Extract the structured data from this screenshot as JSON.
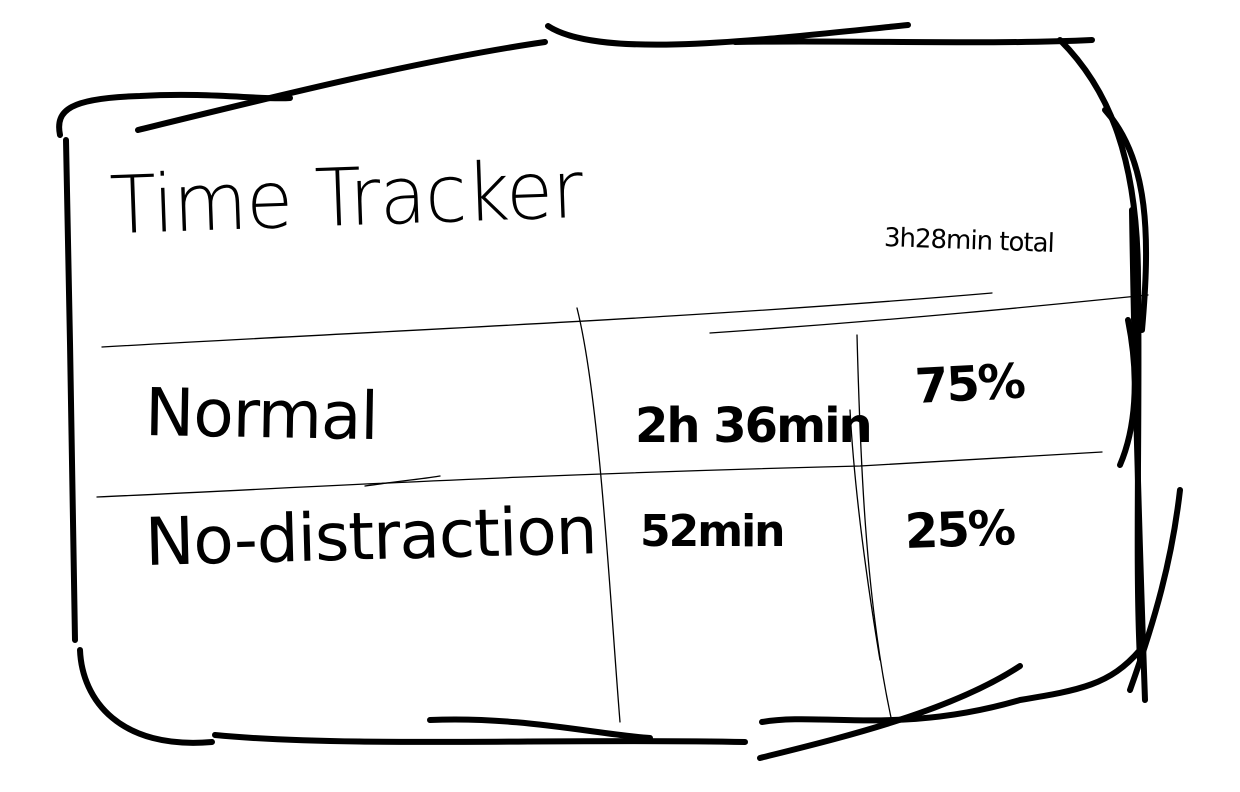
{
  "tracker": {
    "title": "Time Tracker",
    "total": "3h28min total",
    "rows": [
      {
        "label": "Normal",
        "time": "2h 36min",
        "percent": "75%"
      },
      {
        "label": "No-distraction",
        "time": "52min",
        "percent": "25%"
      }
    ]
  },
  "style": {
    "ink": "#000000",
    "paper": "#ffffff"
  }
}
